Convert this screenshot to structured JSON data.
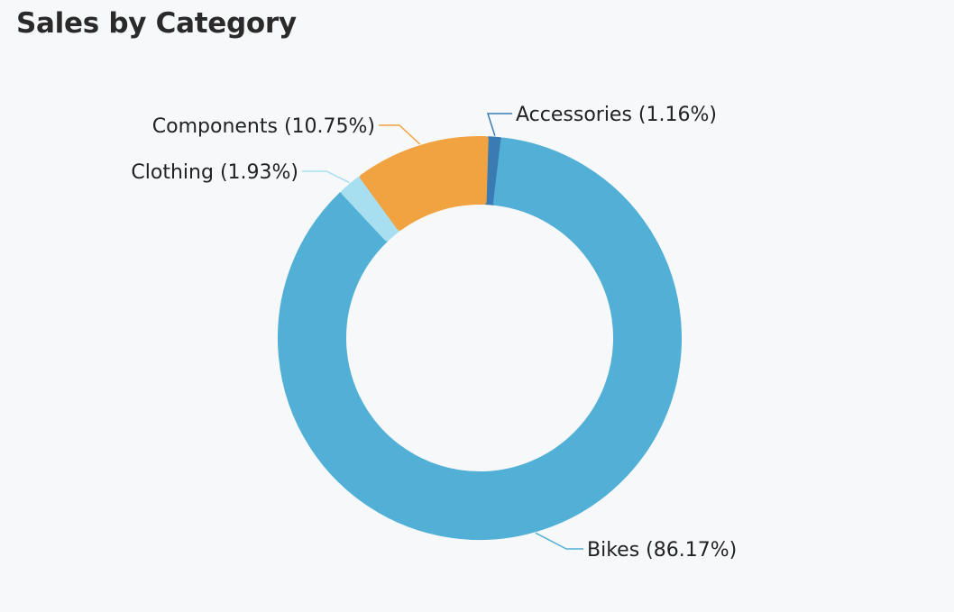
{
  "chart_data": {
    "type": "pie",
    "title": "Sales by Category",
    "categories": [
      "Bikes",
      "Accessories",
      "Components",
      "Clothing"
    ],
    "values": [
      86.17,
      1.16,
      10.75,
      1.93
    ],
    "labels": [
      "Bikes (86.17%)",
      "Accessories (1.16%)",
      "Components (10.75%)",
      "Clothing (1.93%)"
    ],
    "colors": [
      "#52b0d6",
      "#3b7bb3",
      "#f0a340",
      "#a7dff0"
    ],
    "donut": true,
    "legend": "none"
  }
}
